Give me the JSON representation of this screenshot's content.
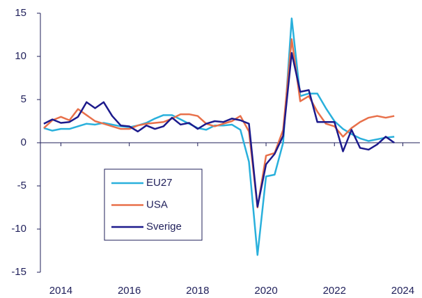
{
  "chart_data": {
    "type": "line",
    "x": [
      2013.5,
      2013.75,
      2014,
      2014.25,
      2014.5,
      2014.75,
      2015,
      2015.25,
      2015.5,
      2015.75,
      2016,
      2016.25,
      2016.5,
      2016.75,
      2017,
      2017.25,
      2017.5,
      2017.75,
      2018,
      2018.25,
      2018.5,
      2018.75,
      2019,
      2019.25,
      2019.5,
      2019.75,
      2020,
      2020.25,
      2020.5,
      2020.75,
      2021,
      2021.25,
      2021.5,
      2021.75,
      2022,
      2022.25,
      2022.5,
      2022.75,
      2023,
      2023.25,
      2023.5,
      2023.75
    ],
    "series": [
      {
        "name": "EU27",
        "color": "#29b0dc",
        "values": [
          1.7,
          1.4,
          1.6,
          1.6,
          1.9,
          2.2,
          2.1,
          2.3,
          2.1,
          1.9,
          1.8,
          2.0,
          2.3,
          2.8,
          3.2,
          3.2,
          2.7,
          2.2,
          1.7,
          1.5,
          2.0,
          2.0,
          2.1,
          1.5,
          -2.2,
          -13.0,
          -3.9,
          -3.7,
          0.0,
          14.4,
          5.4,
          5.7,
          5.7,
          4.0,
          2.5,
          1.6,
          1.0,
          0.5,
          0.2,
          0.4,
          0.6,
          0.7
        ]
      },
      {
        "name": "USA",
        "color": "#e8704a",
        "values": [
          1.7,
          2.6,
          3.0,
          2.6,
          3.9,
          3.2,
          2.5,
          2.2,
          1.9,
          1.6,
          1.6,
          2.0,
          2.2,
          2.3,
          2.4,
          2.8,
          3.3,
          3.3,
          3.1,
          2.2,
          1.9,
          2.2,
          2.5,
          3.1,
          1.3,
          -7.5,
          -1.5,
          -1.2,
          1.5,
          12.0,
          4.8,
          5.4,
          3.6,
          2.2,
          1.9,
          0.7,
          1.7,
          2.4,
          2.9,
          3.1,
          2.9,
          3.1
        ]
      },
      {
        "name": "Sverige",
        "color": "#1c1a8c",
        "values": [
          2.2,
          2.7,
          2.3,
          2.4,
          3.0,
          4.7,
          4.0,
          4.7,
          3.1,
          2.0,
          1.9,
          1.3,
          2.0,
          1.6,
          1.9,
          2.9,
          2.1,
          2.3,
          1.6,
          2.2,
          2.5,
          2.4,
          2.8,
          2.6,
          2.2,
          -7.4,
          -2.5,
          -1.3,
          0.8,
          10.4,
          5.9,
          6.1,
          2.4,
          2.4,
          2.4,
          -1.0,
          1.5,
          -0.6,
          -0.8,
          -0.2,
          0.7,
          0.0
        ]
      }
    ],
    "xlim": [
      2013.4,
      2024.5
    ],
    "xticks": [
      2014,
      2016,
      2018,
      2020,
      2022,
      2024
    ],
    "ylim": [
      -15,
      15
    ],
    "yticks": [
      -15,
      -10,
      -5,
      0,
      5,
      10,
      15
    ],
    "legend": "lower-left",
    "grid": false
  }
}
